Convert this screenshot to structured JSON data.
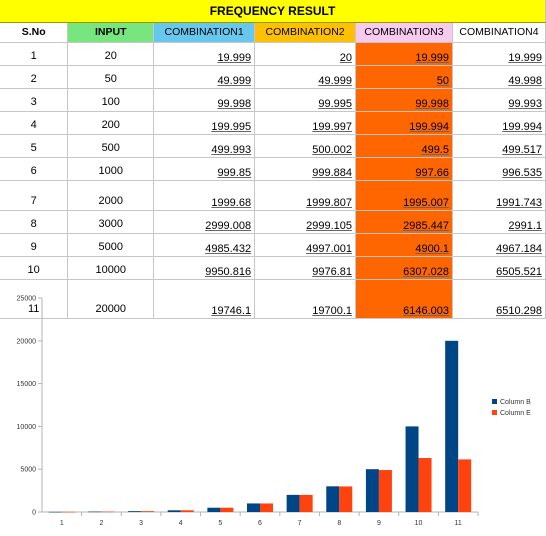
{
  "sheet": {
    "title": "FREQUENCY RESULT",
    "headers": [
      "S.No",
      "INPUT",
      "COMBINATION1",
      "COMBINATION2",
      "COMBINATION3",
      "COMBINATION4"
    ],
    "rows": [
      [
        "1",
        "20",
        "19.999",
        "20",
        "19.999",
        "19.999"
      ],
      [
        "2",
        "50",
        "49.999",
        "49.999",
        "50",
        "49.998"
      ],
      [
        "3",
        "100",
        "99.998",
        "99.995",
        "99.998",
        "99.993"
      ],
      [
        "4",
        "200",
        "199.995",
        "199.997",
        "199.994",
        "199.994"
      ],
      [
        "5",
        "500",
        "499.993",
        "500.002",
        "499.5",
        "499.517"
      ],
      [
        "6",
        "1000",
        "999.85",
        "999.884",
        "997.66",
        "996.535"
      ],
      [
        "7",
        "2000",
        "1999.68",
        "1999.807",
        "1995.007",
        "1991.743"
      ],
      [
        "8",
        "3000",
        "2999.008",
        "2999.105",
        "2985.447",
        "2991.1"
      ],
      [
        "9",
        "5000",
        "4985.432",
        "4997.001",
        "4900.1",
        "4967.184"
      ],
      [
        "10",
        "10000",
        "9950.816",
        "9976.81",
        "6307.028",
        "6505.521"
      ],
      [
        "11",
        "20000",
        "19746.1",
        "19700.1",
        "6146.003",
        "6510.298"
      ]
    ],
    "colors": {
      "title_bg": "#ffff00",
      "input_header": "#77e67e",
      "combination1_header": "#66c7ef",
      "combination2_header": "#ffc000",
      "combination3_header": "#f7cbf0",
      "combination3_fill": "#ff6600"
    }
  },
  "chart_data": {
    "type": "bar",
    "categories": [
      "1",
      "2",
      "3",
      "4",
      "5",
      "6",
      "7",
      "8",
      "9",
      "10",
      "11"
    ],
    "series": [
      {
        "name": "Column B",
        "color": "#004586",
        "values": [
          20,
          50,
          100,
          200,
          500,
          1000,
          2000,
          3000,
          5000,
          10000,
          20000
        ]
      },
      {
        "name": "Column E",
        "color": "#ff420e",
        "values": [
          19.999,
          50,
          99.998,
          199.994,
          499.5,
          997.66,
          1995.007,
          2985.447,
          4900.1,
          6307.028,
          6146.003
        ]
      }
    ],
    "ylim": [
      0,
      25000
    ],
    "yticks": [
      "0",
      "5000",
      "10000",
      "15000",
      "20000",
      "25000"
    ],
    "grid": true,
    "legend": "right"
  }
}
